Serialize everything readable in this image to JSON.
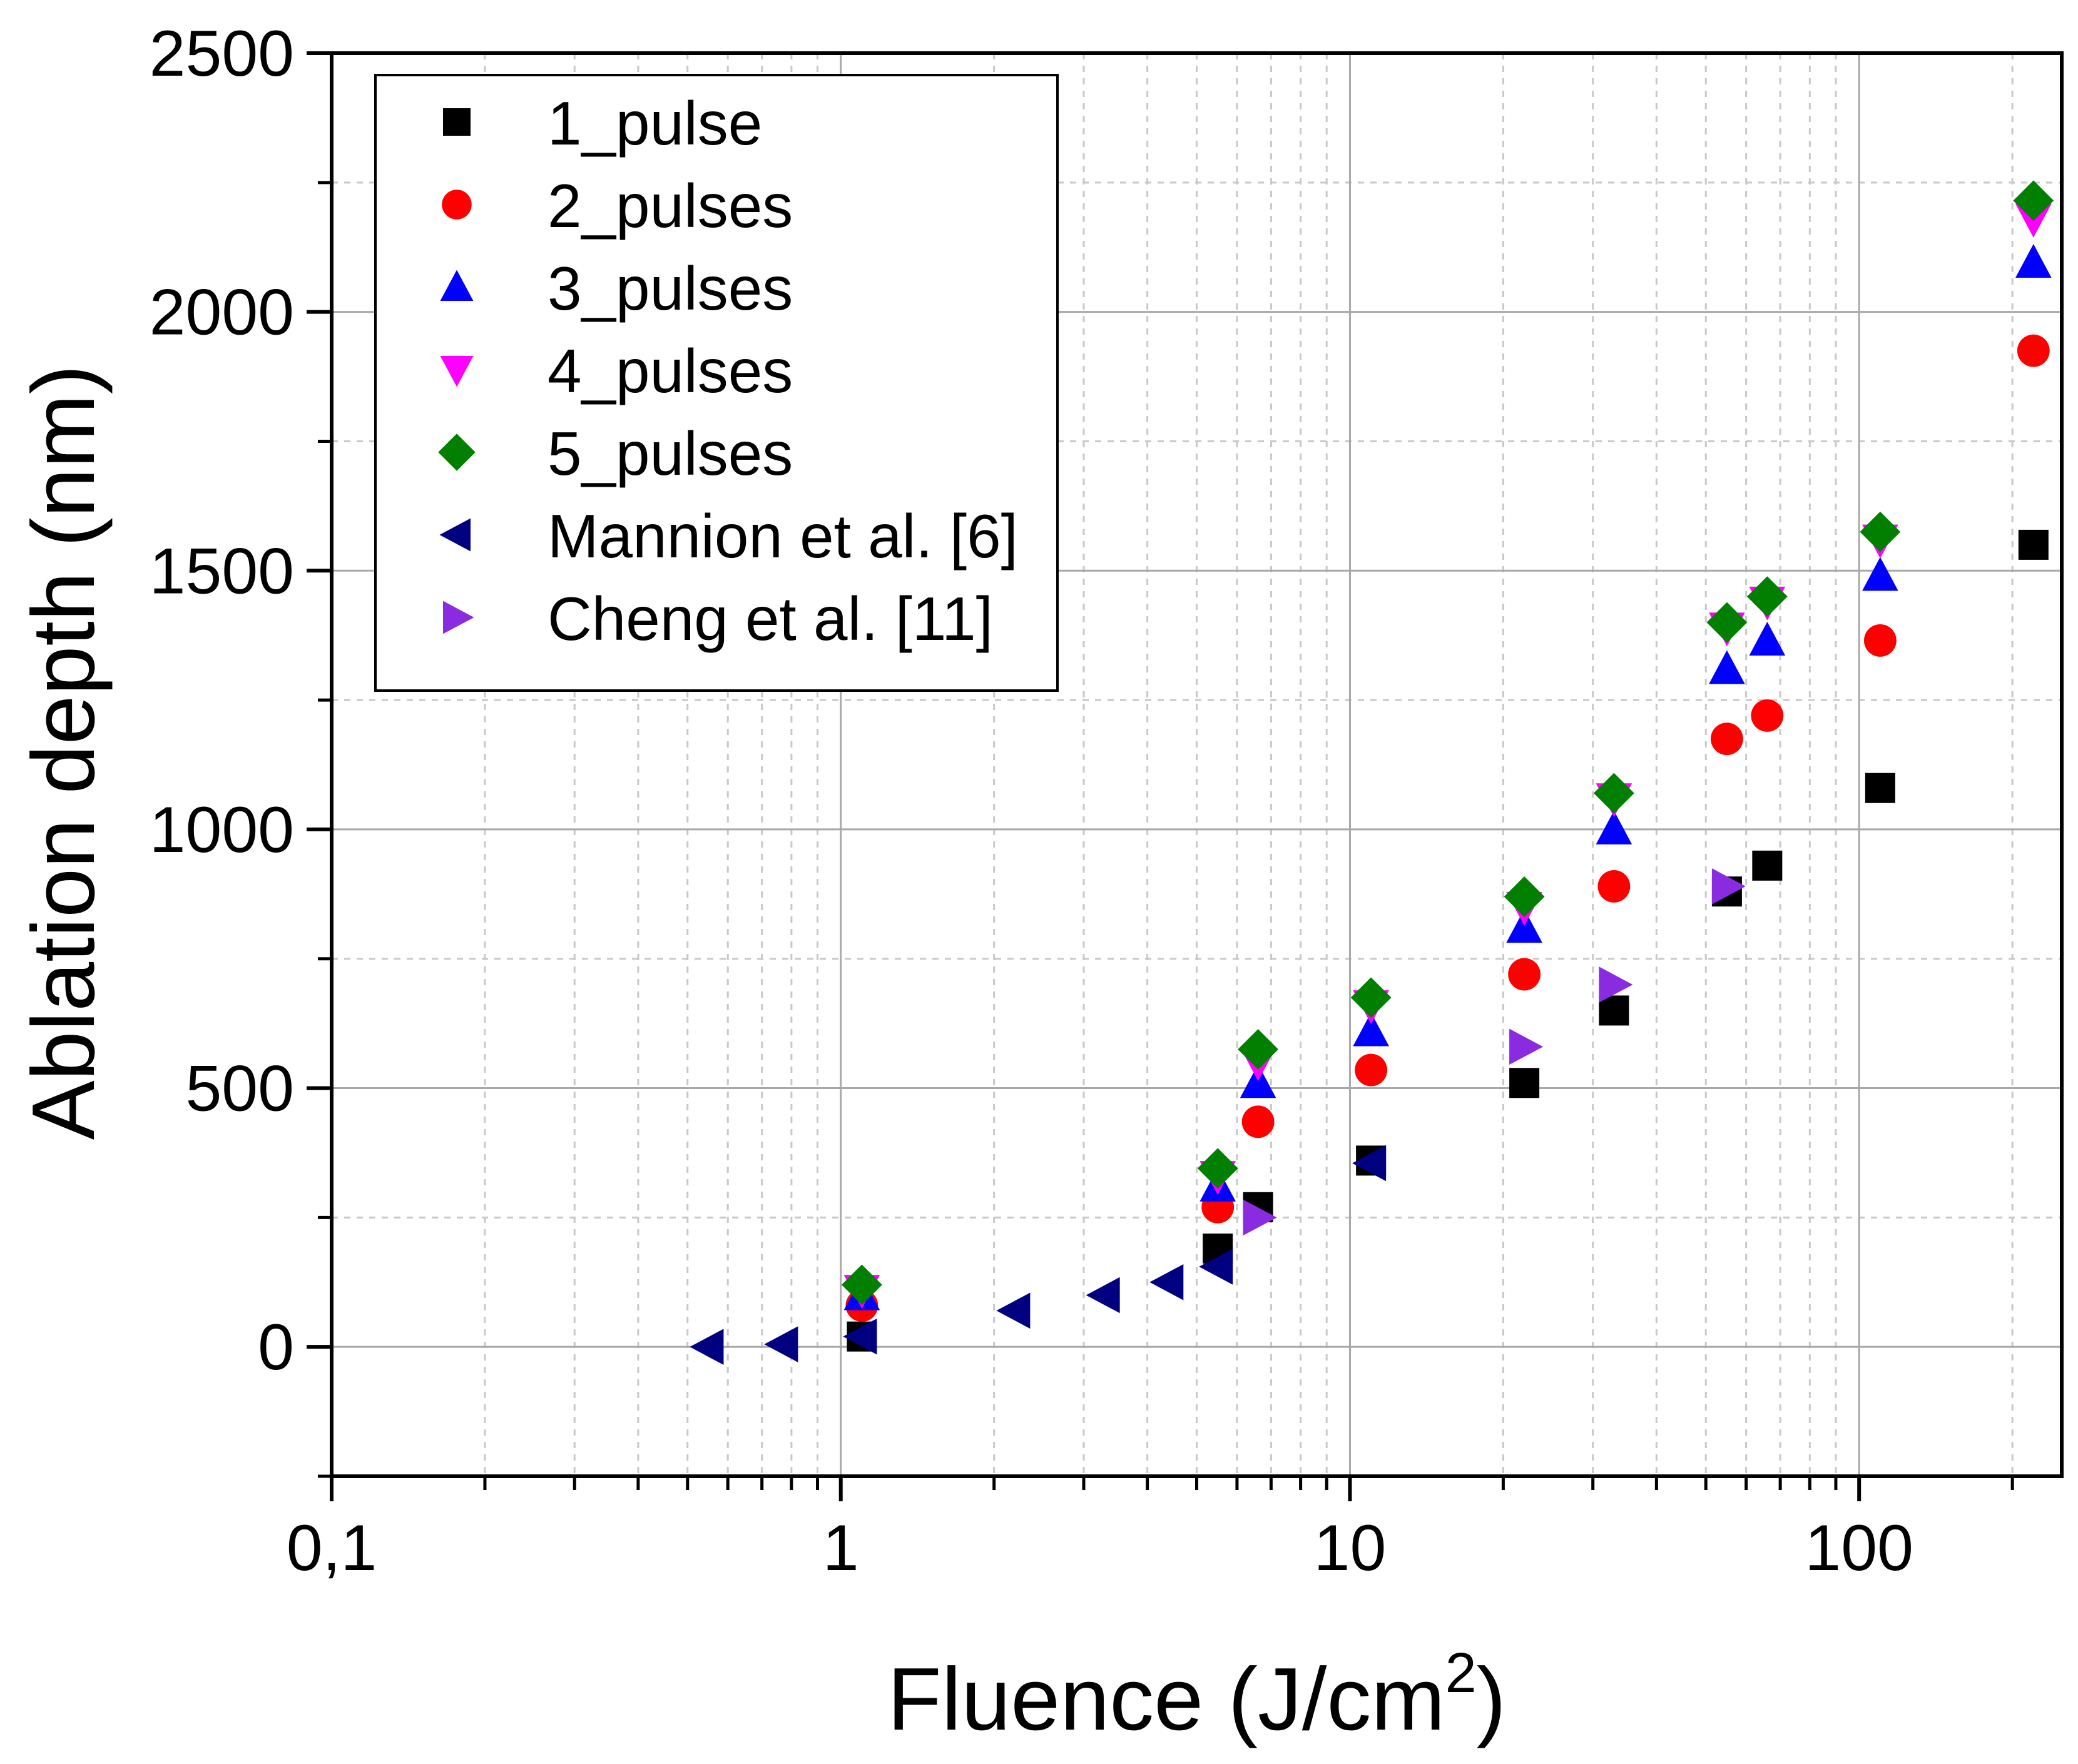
{
  "chart_data": {
    "type": "scatter",
    "xscale": "log",
    "xlabel_main": "Fluence (J/cm",
    "xlabel_sup": "2",
    "xlabel_close": ")",
    "ylabel": "Ablation depth (nm)",
    "xlim": [
      0.1,
      250
    ],
    "ylim": [
      -250,
      2500
    ],
    "grid": true,
    "legend_position": "top-left",
    "xticks": [
      {
        "value": 0.1,
        "label": "0,1"
      },
      {
        "value": 1,
        "label": "1"
      },
      {
        "value": 10,
        "label": "10"
      },
      {
        "value": 100,
        "label": "100"
      }
    ],
    "yticks": [
      {
        "value": 0,
        "label": "0"
      },
      {
        "value": 500,
        "label": "500"
      },
      {
        "value": 1000,
        "label": "1000"
      },
      {
        "value": 1500,
        "label": "1500"
      },
      {
        "value": 2000,
        "label": "2000"
      },
      {
        "value": 2500,
        "label": "2500"
      }
    ],
    "series": [
      {
        "name": "1_pulse",
        "marker": "square",
        "color": "#000000",
        "x": [
          1.1,
          5.5,
          6.6,
          11,
          22,
          33,
          55,
          66,
          110,
          220
        ],
        "y": [
          20,
          190,
          270,
          360,
          510,
          650,
          880,
          930,
          1080,
          1550
        ]
      },
      {
        "name": "2_pulses",
        "marker": "circle",
        "color": "#ff0000",
        "x": [
          1.1,
          5.5,
          6.6,
          11,
          22,
          33,
          55,
          66,
          110,
          220
        ],
        "y": [
          80,
          270,
          435,
          535,
          720,
          890,
          1175,
          1220,
          1365,
          1925
        ]
      },
      {
        "name": "3_pulses",
        "marker": "triangle-up",
        "color": "#0000ff",
        "x": [
          1.1,
          5.5,
          6.6,
          11,
          22,
          33,
          55,
          66,
          110,
          220
        ],
        "y": [
          100,
          310,
          510,
          610,
          810,
          1000,
          1310,
          1365,
          1490,
          2095
        ]
      },
      {
        "name": "4_pulses",
        "marker": "triangle-down",
        "color": "#ff00ff",
        "x": [
          1.1,
          5.5,
          6.6,
          11,
          22,
          33,
          55,
          66,
          110,
          220
        ],
        "y": [
          110,
          330,
          550,
          660,
          850,
          1060,
          1390,
          1440,
          1560,
          2180
        ]
      },
      {
        "name": "5_pulses",
        "marker": "diamond",
        "color": "#007f00",
        "x": [
          1.1,
          5.5,
          6.6,
          11,
          22,
          33,
          55,
          66,
          110,
          220
        ],
        "y": [
          120,
          345,
          575,
          675,
          870,
          1070,
          1400,
          1450,
          1575,
          2215
        ]
      },
      {
        "name": "Mannion et al. [6]",
        "marker": "triangle-left",
        "color": "#000080",
        "x": [
          0.55,
          0.77,
          1.1,
          2.2,
          3.3,
          4.4,
          5.5,
          11
        ],
        "y": [
          0,
          5,
          20,
          70,
          100,
          125,
          155,
          355
        ]
      },
      {
        "name": "Cheng et al. [11]",
        "marker": "triangle-right",
        "color": "#8a2be2",
        "x": [
          6.6,
          22,
          33,
          55
        ],
        "y": [
          250,
          580,
          700,
          890
        ]
      }
    ]
  }
}
